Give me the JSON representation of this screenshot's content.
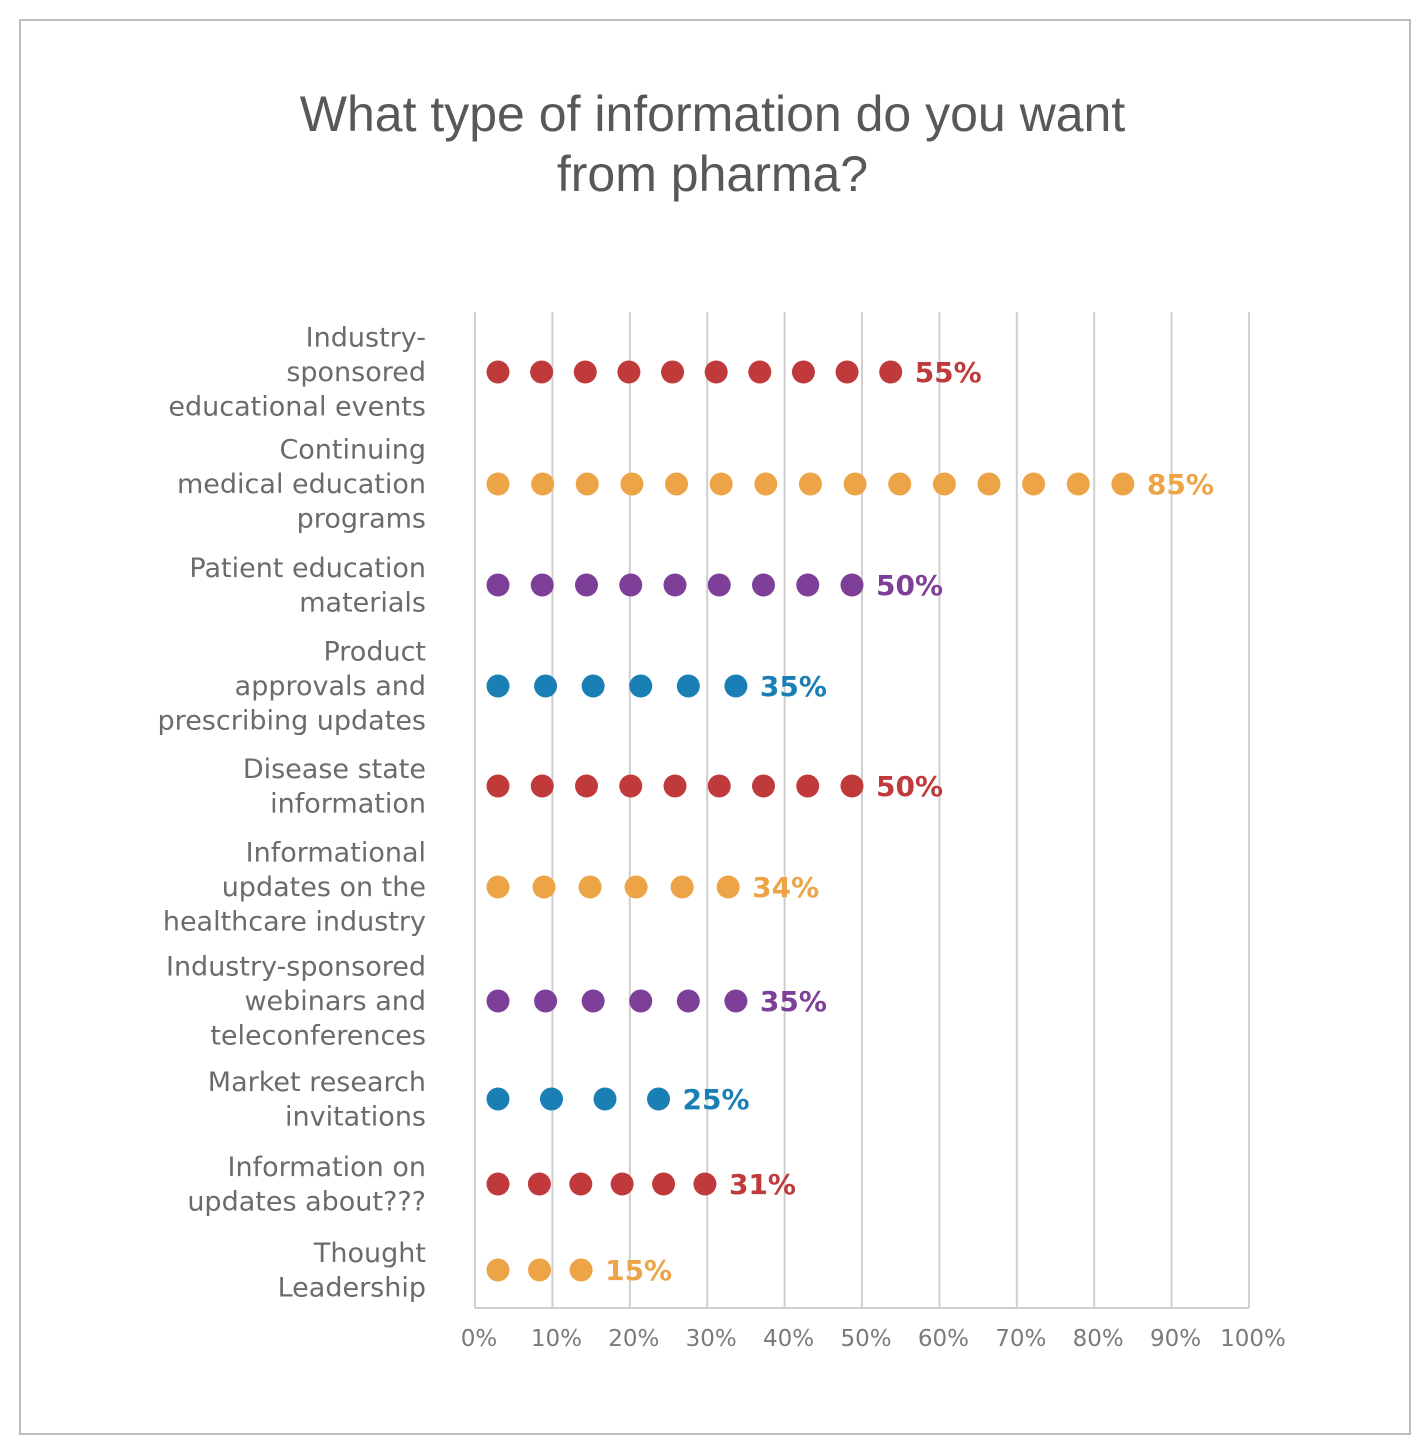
{
  "chart_data": {
    "type": "scatter",
    "title": "What type of information do you want from pharma?",
    "title_lines": [
      "What type of information do you want",
      "from pharma?"
    ],
    "xlim": [
      0,
      100
    ],
    "x_ticks": [
      "0%",
      "10%",
      "20%",
      "30%",
      "40%",
      "50%",
      "60%",
      "70%",
      "80%",
      "90%",
      "100%"
    ],
    "grid": true,
    "categories": [
      {
        "label_lines": [
          "Industry-",
          "sponsored",
          "educational events"
        ],
        "value": 55,
        "value_label": "55%",
        "color": "#c0393b"
      },
      {
        "label_lines": [
          "Continuing",
          "medical education",
          "programs"
        ],
        "value": 85,
        "value_label": "85%",
        "color": "#eca447"
      },
      {
        "label_lines": [
          "Patient education",
          "materials"
        ],
        "value": 50,
        "value_label": "50%",
        "color": "#7d3f98"
      },
      {
        "label_lines": [
          "Product",
          "approvals and",
          "prescribing updates"
        ],
        "value": 35,
        "value_label": "35%",
        "color": "#1a7fb5"
      },
      {
        "label_lines": [
          "Disease state",
          "information"
        ],
        "value": 50,
        "value_label": "50%",
        "color": "#c0393b"
      },
      {
        "label_lines": [
          "Informational",
          "updates on the",
          "healthcare industry"
        ],
        "value": 34,
        "value_label": "34%",
        "color": "#eca447"
      },
      {
        "label_lines": [
          "Industry-sponsored",
          "webinars and",
          "teleconferences"
        ],
        "value": 35,
        "value_label": "35%",
        "color": "#7d3f98"
      },
      {
        "label_lines": [
          "Market research",
          "invitations"
        ],
        "value": 25,
        "value_label": "25%",
        "color": "#1a7fb5"
      },
      {
        "label_lines": [
          "Information on",
          "updates about???"
        ],
        "value": 31,
        "value_label": "31%",
        "color": "#c0393b"
      },
      {
        "label_lines": [
          "Thought",
          "Leadership"
        ],
        "value": 15,
        "value_label": "15%",
        "color": "#eca447"
      }
    ],
    "dot_counts": [
      10,
      15,
      9,
      6,
      9,
      6,
      6,
      4,
      6,
      3
    ],
    "gridline_color": "#cfcfcf"
  }
}
